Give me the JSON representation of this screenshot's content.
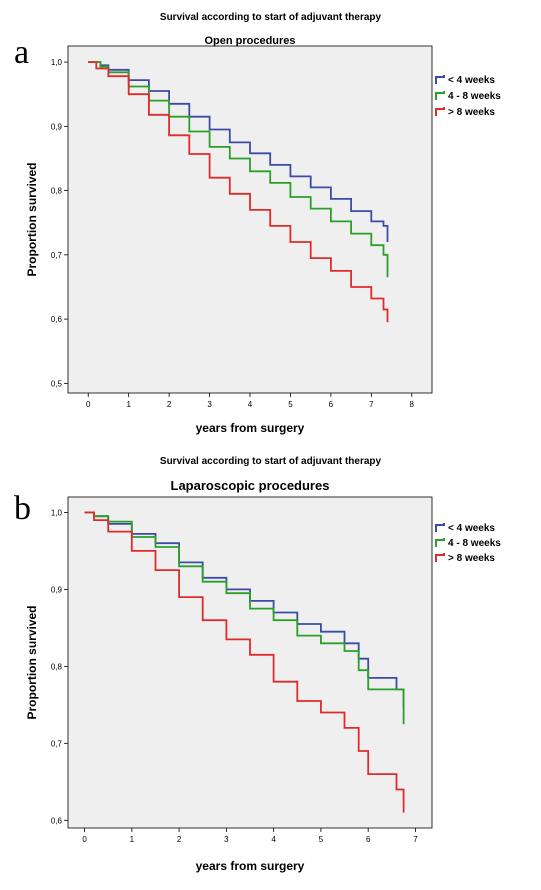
{
  "figure": {
    "panels": [
      {
        "letter": "a",
        "suptitle": "Survival according to start of adjuvant therapy"
      },
      {
        "letter": "b",
        "suptitle": "Survival according to start of adjuvant therapy"
      }
    ]
  },
  "chart_data": [
    {
      "type": "line",
      "step": true,
      "title": "Open procedures",
      "xlabel": "years from surgery",
      "ylabel": "Proportion survived",
      "xlim": [
        -0.5,
        8.5
      ],
      "ylim": [
        0.485,
        1.025
      ],
      "xticks": [
        "0",
        "1",
        "2",
        "3",
        "4",
        "5",
        "6",
        "7",
        "8"
      ],
      "yticks": [
        "0,5",
        "0,6",
        "0,7",
        "0,8",
        "0,9",
        "1,0"
      ],
      "grid": false,
      "legend_position": "top-right",
      "background": "#efefef",
      "series": [
        {
          "name": "< 4 weeks",
          "color": "#3c4ca6",
          "x": [
            0,
            0.3,
            0.5,
            1,
            1.5,
            2,
            2.5,
            3,
            3.5,
            4,
            4.5,
            5,
            5.5,
            6,
            6.5,
            7,
            7.3,
            7.4
          ],
          "y": [
            1.0,
            0.995,
            0.988,
            0.972,
            0.955,
            0.935,
            0.915,
            0.895,
            0.875,
            0.858,
            0.84,
            0.822,
            0.805,
            0.787,
            0.768,
            0.752,
            0.745,
            0.72
          ]
        },
        {
          "name": "4 - 8 weeks",
          "color": "#2aa02a",
          "x": [
            0,
            0.3,
            0.5,
            1,
            1.5,
            2,
            2.5,
            3,
            3.5,
            4,
            4.5,
            5,
            5.5,
            6,
            6.5,
            7,
            7.3,
            7.4
          ],
          "y": [
            1.0,
            0.993,
            0.984,
            0.962,
            0.94,
            0.915,
            0.892,
            0.868,
            0.85,
            0.83,
            0.812,
            0.79,
            0.772,
            0.752,
            0.733,
            0.715,
            0.7,
            0.665
          ]
        },
        {
          "name": "> 8 weeks",
          "color": "#e02b2b",
          "x": [
            0,
            0.2,
            0.5,
            1,
            1.5,
            2,
            2.5,
            3,
            3.5,
            4,
            4.5,
            5,
            5.5,
            6,
            6.5,
            7,
            7.3,
            7.4
          ],
          "y": [
            1.0,
            0.99,
            0.978,
            0.95,
            0.918,
            0.886,
            0.857,
            0.82,
            0.795,
            0.77,
            0.745,
            0.72,
            0.695,
            0.675,
            0.65,
            0.632,
            0.615,
            0.595
          ]
        }
      ]
    },
    {
      "type": "line",
      "step": true,
      "title": "Laparoscopic procedures",
      "xlabel": "years from surgery",
      "ylabel": "Proportion survived",
      "xlim": [
        -0.35,
        7.35
      ],
      "ylim": [
        0.59,
        1.02
      ],
      "xticks": [
        "0",
        "1",
        "2",
        "3",
        "4",
        "5",
        "6",
        "7"
      ],
      "yticks": [
        "0,6",
        "0,7",
        "0,8",
        "0,9",
        "1,0"
      ],
      "grid": false,
      "legend_position": "top-right",
      "background": "#efefef",
      "series": [
        {
          "name": "< 4 weeks",
          "color": "#3c4ca6",
          "x": [
            0,
            0.2,
            0.5,
            1,
            1.5,
            2,
            2.5,
            3,
            3.5,
            4,
            4.5,
            5,
            5.5,
            5.8,
            6,
            6.3,
            6.6,
            6.75
          ],
          "y": [
            1.0,
            0.995,
            0.985,
            0.972,
            0.96,
            0.935,
            0.915,
            0.9,
            0.885,
            0.87,
            0.855,
            0.845,
            0.83,
            0.81,
            0.785,
            0.785,
            0.77,
            0.745
          ]
        },
        {
          "name": "4 - 8 weeks",
          "color": "#2aa02a",
          "x": [
            0,
            0.2,
            0.5,
            1,
            1.5,
            2,
            2.5,
            3,
            3.5,
            4,
            4.5,
            5,
            5.5,
            5.8,
            6,
            6.3,
            6.6,
            6.75
          ],
          "y": [
            1.0,
            0.995,
            0.988,
            0.968,
            0.955,
            0.93,
            0.91,
            0.895,
            0.875,
            0.86,
            0.84,
            0.83,
            0.82,
            0.795,
            0.77,
            0.77,
            0.77,
            0.725
          ]
        },
        {
          "name": "> 8 weeks",
          "color": "#e02b2b",
          "x": [
            0,
            0.2,
            0.5,
            1,
            1.5,
            2,
            2.5,
            3,
            3.5,
            4,
            4.5,
            5,
            5.5,
            5.8,
            6,
            6.3,
            6.6,
            6.75
          ],
          "y": [
            1.0,
            0.99,
            0.975,
            0.95,
            0.925,
            0.89,
            0.86,
            0.835,
            0.815,
            0.78,
            0.755,
            0.74,
            0.72,
            0.69,
            0.66,
            0.66,
            0.64,
            0.61
          ]
        }
      ]
    }
  ]
}
